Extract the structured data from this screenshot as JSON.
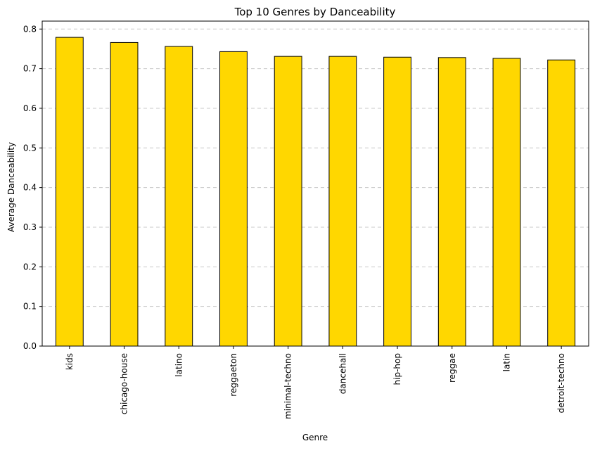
{
  "chart_data": {
    "type": "bar",
    "title": "Top 10 Genres by Danceability",
    "xlabel": "Genre",
    "ylabel": "Average Danceability",
    "categories": [
      "kids",
      "chicago-house",
      "latino",
      "reggaeton",
      "minimal-techno",
      "dancehall",
      "hip-hop",
      "reggae",
      "latin",
      "detroit-techno"
    ],
    "values": [
      0.779,
      0.766,
      0.756,
      0.743,
      0.731,
      0.731,
      0.729,
      0.728,
      0.726,
      0.722
    ],
    "ylim": [
      0,
      0.82
    ],
    "yticks": [
      "0.0",
      "0.1",
      "0.2",
      "0.3",
      "0.4",
      "0.5",
      "0.6",
      "0.7",
      "0.8"
    ],
    "grid": "y-dashed",
    "legend": "none",
    "colors": {
      "bar_fill": "#FFD700",
      "bar_edge": "#000000",
      "grid": "#c8c8c8"
    }
  }
}
